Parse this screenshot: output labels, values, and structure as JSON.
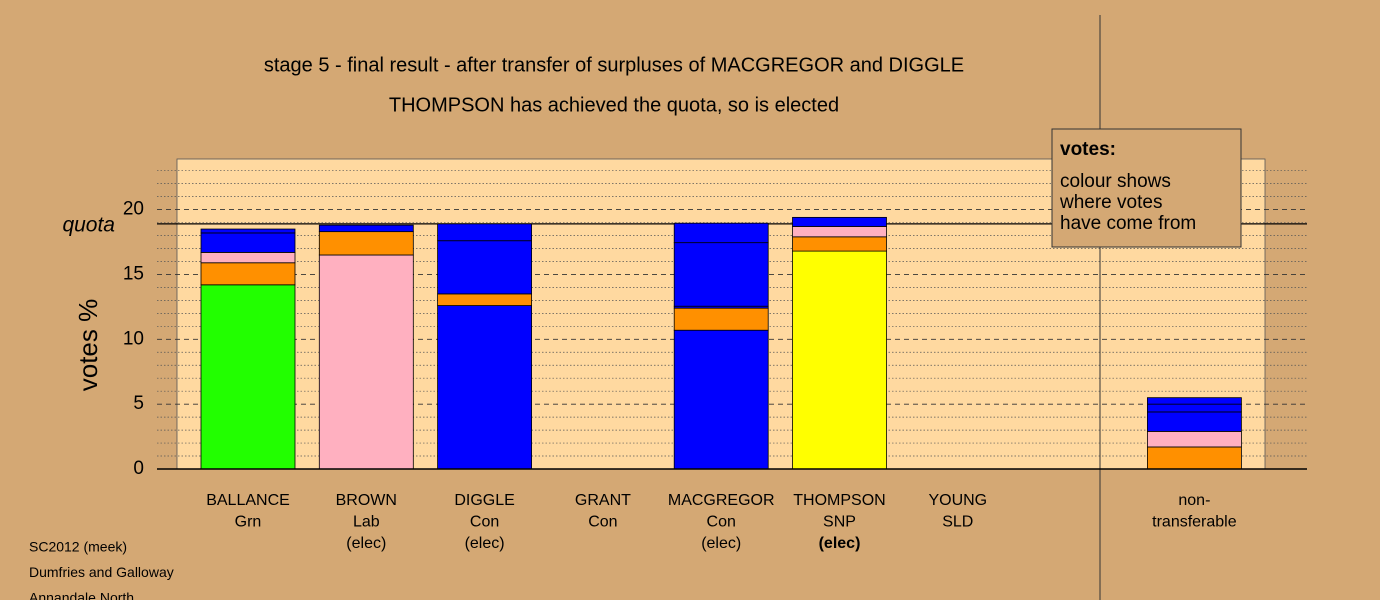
{
  "chart_data": {
    "type": "stacked-bar",
    "title": "stage 5 - final result - after transfer of surpluses of MACGREGOR and DIGGLE",
    "subtitle": "THOMPSON has achieved the quota, so is elected",
    "y_label": "votes %",
    "quota": 18.9,
    "quota_label": "quota",
    "ylim": [
      0,
      23.9
    ],
    "yticks": [
      0,
      5,
      10,
      15,
      20
    ],
    "minor_yticks": [
      1,
      2,
      3,
      4,
      6,
      7,
      8,
      9,
      11,
      12,
      13,
      14,
      16,
      17,
      18,
      19,
      21,
      22,
      23
    ],
    "categories": [
      {
        "lines": [
          "BALLANCE",
          "Grn"
        ],
        "slot": 0,
        "segments": [
          {
            "color": "#22ff00",
            "value": 14.2
          },
          {
            "color": "#ff9000",
            "value": 1.7
          },
          {
            "color": "#ffb0c0",
            "value": 0.8
          },
          {
            "color": "#0000ff",
            "value": 1.5
          },
          {
            "color": "#0000ff",
            "value": 0.3
          }
        ]
      },
      {
        "lines": [
          "BROWN",
          "Lab",
          "(elec)"
        ],
        "slot": 1,
        "segments": [
          {
            "color": "#ffb0c0",
            "value": 16.5
          },
          {
            "color": "#ff9000",
            "value": 1.8
          },
          {
            "color": "#0000ff",
            "value": 0.5
          }
        ]
      },
      {
        "lines": [
          "DIGGLE",
          "Con",
          "(elec)"
        ],
        "slot": 2,
        "segments": [
          {
            "color": "#0000ff",
            "value": 12.6
          },
          {
            "color": "#ff9000",
            "value": 0.9
          },
          {
            "color": "#0000ff",
            "value": 4.1
          },
          {
            "color": "#0000ff",
            "value": 1.3
          }
        ]
      },
      {
        "lines": [
          "GRANT",
          "Con"
        ],
        "slot": 3,
        "segments": []
      },
      {
        "lines": [
          "MACGREGOR",
          "Con",
          "(elec)"
        ],
        "slot": 4,
        "segments": [
          {
            "color": "#0000ff",
            "value": 10.7
          },
          {
            "color": "#ff9000",
            "value": 1.7
          },
          {
            "color": "#0000ff",
            "value": 0.15
          },
          {
            "color": "#0000ff",
            "value": 4.9
          },
          {
            "color": "#0000ff",
            "value": 1.5
          }
        ]
      },
      {
        "lines": [
          "THOMPSON",
          "SNP",
          "(elec)"
        ],
        "bold_last": true,
        "slot": 5,
        "segments": [
          {
            "color": "#ffff00",
            "value": 16.8
          },
          {
            "color": "#ff9000",
            "value": 1.1
          },
          {
            "color": "#ffb0c0",
            "value": 0.8
          },
          {
            "color": "#0000ff",
            "value": 0.7
          }
        ]
      },
      {
        "lines": [
          "YOUNG",
          "SLD"
        ],
        "slot": 6,
        "segments": []
      },
      {
        "lines": [
          "non-",
          "transferable"
        ],
        "slot": 8,
        "segments": [
          {
            "color": "#ff9000",
            "value": 1.7
          },
          {
            "color": "#ffb0c0",
            "value": 1.2
          },
          {
            "color": "#0000ff",
            "value": 1.5
          },
          {
            "color": "#0000ff",
            "value": 0.6
          },
          {
            "color": "#0000ff",
            "value": 0.5
          }
        ]
      }
    ],
    "legend": {
      "title": "votes:",
      "lines": [
        "colour shows",
        "where votes",
        "have come from"
      ]
    },
    "footer": [
      "SC2012 (meek)",
      "Dumfries and Galloway",
      "Annandale North"
    ]
  }
}
